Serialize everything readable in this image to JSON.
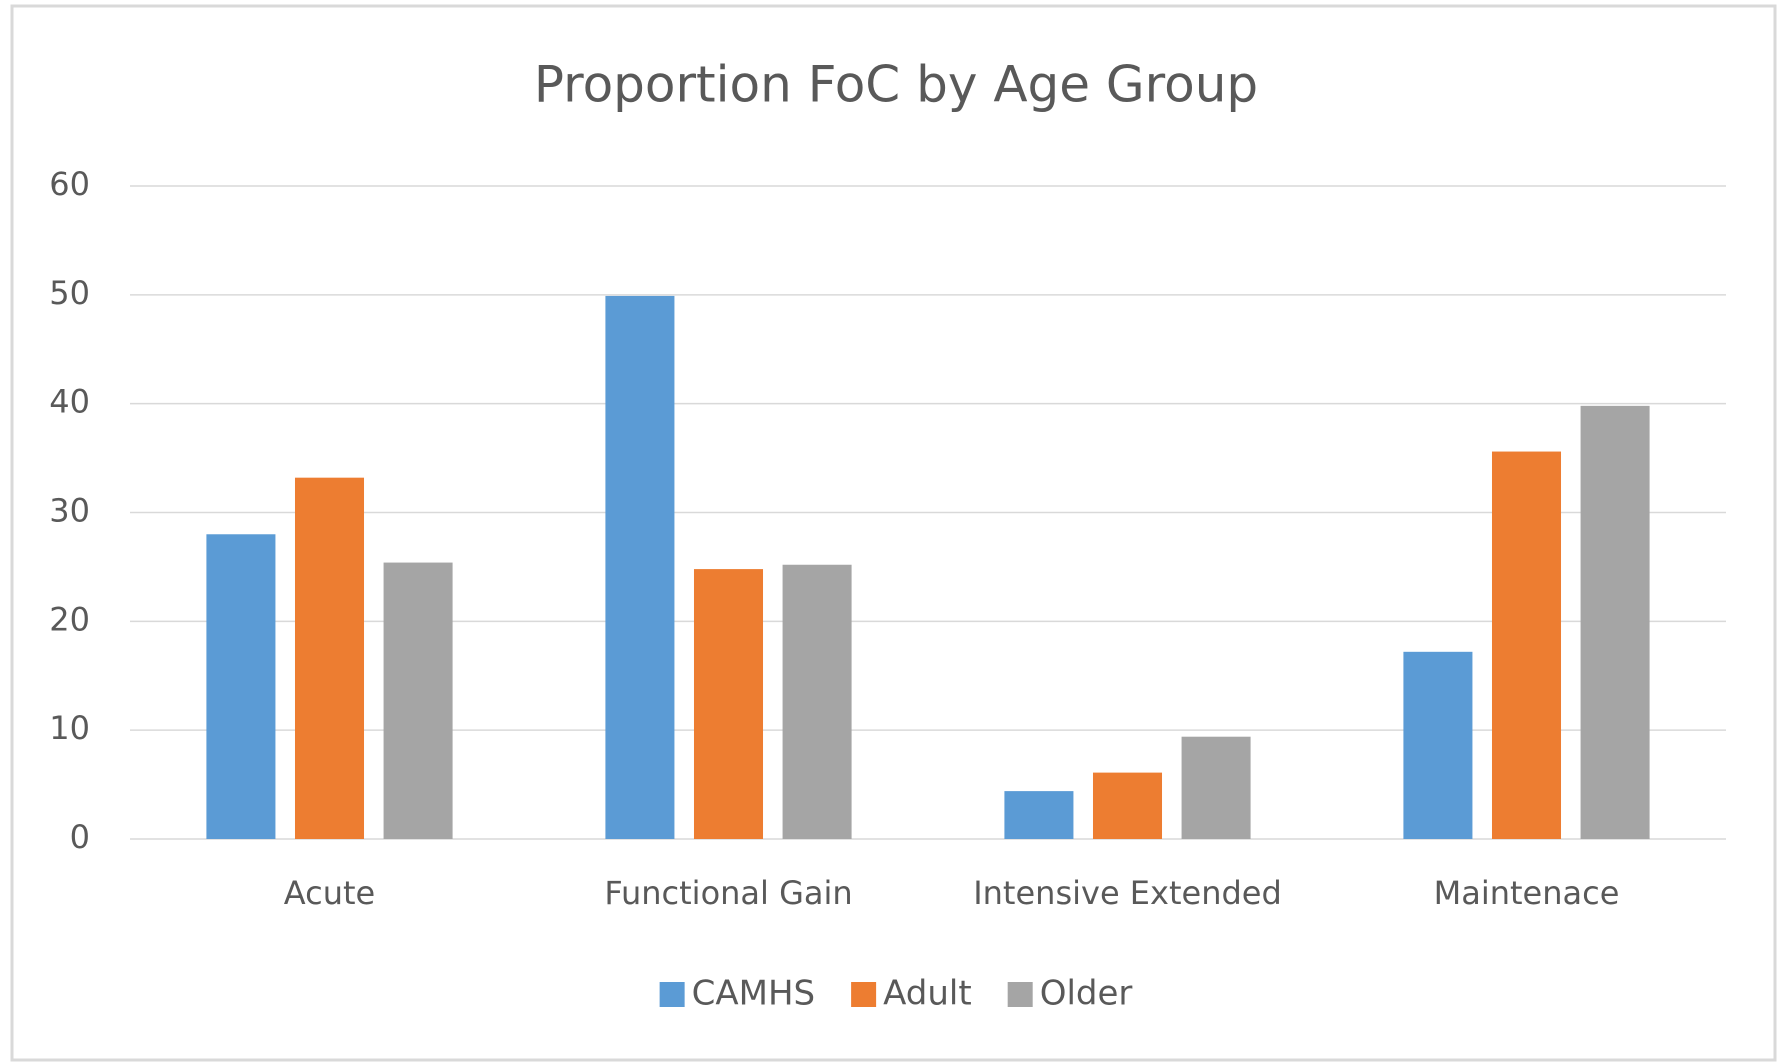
{
  "chart_data": {
    "type": "bar",
    "title": "Proportion FoC by Age Group",
    "categories": [
      "Acute",
      "Functional Gain",
      "Intensive Extended",
      "Maintenace"
    ],
    "series": [
      {
        "name": "CAMHS",
        "color": "#5b9bd5",
        "values": [
          28.0,
          49.9,
          4.4,
          17.2
        ]
      },
      {
        "name": "Adult",
        "color": "#ed7d31",
        "values": [
          33.2,
          24.8,
          6.1,
          35.6
        ]
      },
      {
        "name": "Older",
        "color": "#a5a5a5",
        "values": [
          25.4,
          25.2,
          9.4,
          39.8
        ]
      }
    ],
    "ylim": [
      0,
      60
    ],
    "yticks": [
      0,
      10,
      20,
      30,
      40,
      50,
      60
    ],
    "grid": true,
    "legend": "bottom"
  }
}
